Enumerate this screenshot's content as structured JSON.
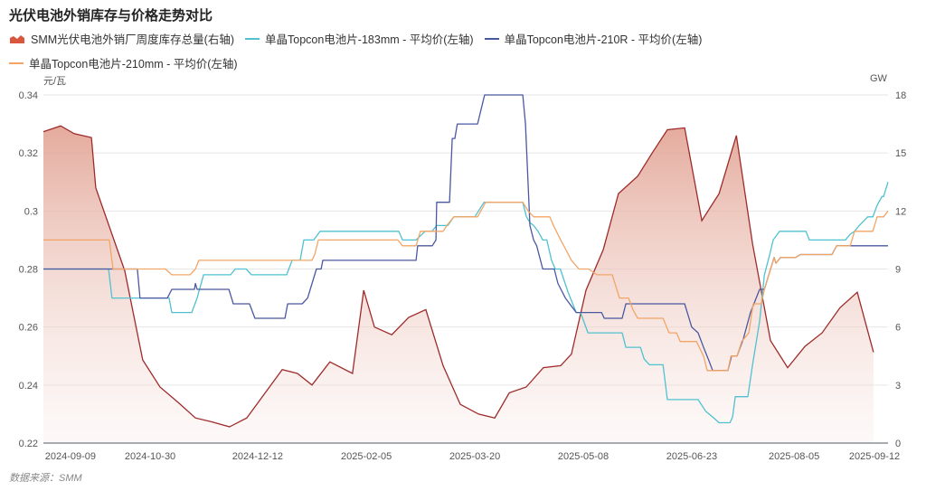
{
  "title": "光伏电池外销库存与价格走势对比",
  "source": "数据来源：SMM",
  "chart_data": {
    "type": "line",
    "title": "光伏电池外销库存与价格走势对比",
    "x_type": "category index (trading days)",
    "x_range": [
      0,
      250
    ],
    "x_tick_labels": [
      {
        "i": 8,
        "label": "2024-09-09"
      },
      {
        "i": 31.6,
        "label": "2024-10-30"
      },
      {
        "i": 63.4,
        "label": "2024-12-12"
      },
      {
        "i": 95.6,
        "label": "2025-02-05"
      },
      {
        "i": 127.7,
        "label": "2025-03-20"
      },
      {
        "i": 159.8,
        "label": "2025-05-08"
      },
      {
        "i": 191.9,
        "label": "2025-06-23"
      },
      {
        "i": 222.2,
        "label": "2025-08-05"
      },
      {
        "i": 246,
        "label": "2025-09-12"
      }
    ],
    "y_left": {
      "label": "元/瓦",
      "range": [
        0.22,
        0.34
      ],
      "ticks": [
        "0.22",
        "0.24",
        "0.26",
        "0.28",
        "0.3",
        "0.32",
        "0.34"
      ]
    },
    "y_right": {
      "label": "GW",
      "range": [
        0,
        18
      ],
      "ticks": [
        "0",
        "3",
        "6",
        "9",
        "12",
        "15",
        "18"
      ]
    },
    "grid": true,
    "legend_position": "top-left",
    "series": [
      {
        "name": "SMM光伏电池外销厂周度库存总量(右轴)",
        "type": "area",
        "axis": "right",
        "color": "#9e2b2b",
        "points": [
          [
            0,
            16.1
          ],
          [
            5.1,
            16.4
          ],
          [
            9.1,
            16.0
          ],
          [
            14.2,
            15.8
          ],
          [
            15.5,
            13.2
          ],
          [
            24.1,
            8.9
          ],
          [
            29.4,
            4.3
          ],
          [
            34.5,
            2.9
          ],
          [
            39.9,
            2.1
          ],
          [
            45,
            1.3
          ],
          [
            49.8,
            1.1
          ],
          [
            55.1,
            0.84
          ],
          [
            60.2,
            1.3
          ],
          [
            70.7,
            3.8
          ],
          [
            75.2,
            3.6
          ],
          [
            79.5,
            3.0
          ],
          [
            84.8,
            4.2
          ],
          [
            91.5,
            3.6
          ],
          [
            94.8,
            7.9
          ],
          [
            98,
            6.0
          ],
          [
            103.1,
            5.6
          ],
          [
            108.1,
            6.5
          ],
          [
            113.2,
            6.9
          ],
          [
            118.3,
            4.0
          ],
          [
            123.4,
            2.0
          ],
          [
            128.8,
            1.5
          ],
          [
            133.6,
            1.3
          ],
          [
            137.9,
            2.6
          ],
          [
            142.9,
            2.9
          ],
          [
            148,
            3.9
          ],
          [
            153.1,
            4.0
          ],
          [
            156.3,
            4.6
          ],
          [
            160.6,
            7.9
          ],
          [
            165.7,
            10.0
          ],
          [
            170.2,
            12.9
          ],
          [
            175.9,
            13.8
          ],
          [
            180.2,
            15.0
          ],
          [
            184.7,
            16.2
          ],
          [
            189.8,
            16.3
          ],
          [
            194.9,
            11.5
          ],
          [
            200,
            12.9
          ],
          [
            205.1,
            15.9
          ],
          [
            209.9,
            10.3
          ],
          [
            215.2,
            5.3
          ],
          [
            220.3,
            3.9
          ],
          [
            225.4,
            5.0
          ],
          [
            230.5,
            5.7
          ],
          [
            235.8,
            7.0
          ],
          [
            240.9,
            7.8
          ],
          [
            245.7,
            4.7
          ]
        ]
      },
      {
        "name": "单晶Topcon电池片-183mm - 平均价(左轴)",
        "type": "line",
        "axis": "left",
        "color": "#4fc1d0",
        "points": [
          [
            0,
            0.28
          ],
          [
            19.3,
            0.28
          ],
          [
            20.3,
            0.27
          ],
          [
            37.2,
            0.27
          ],
          [
            38,
            0.265
          ],
          [
            43.9,
            0.265
          ],
          [
            45.5,
            0.27
          ],
          [
            47.4,
            0.278
          ],
          [
            55.4,
            0.278
          ],
          [
            56.8,
            0.28
          ],
          [
            60,
            0.28
          ],
          [
            61.6,
            0.278
          ],
          [
            72,
            0.278
          ],
          [
            73.6,
            0.283
          ],
          [
            76,
            0.283
          ],
          [
            77.1,
            0.29
          ],
          [
            80,
            0.29
          ],
          [
            81.9,
            0.293
          ],
          [
            105.2,
            0.293
          ],
          [
            106.3,
            0.29
          ],
          [
            110.3,
            0.29
          ],
          [
            113,
            0.293
          ],
          [
            115,
            0.293
          ],
          [
            116.4,
            0.295
          ],
          [
            119.7,
            0.295
          ],
          [
            121.5,
            0.298
          ],
          [
            127.7,
            0.298
          ],
          [
            130.4,
            0.303
          ],
          [
            141.9,
            0.303
          ],
          [
            143,
            0.298
          ],
          [
            144,
            0.296
          ],
          [
            145.1,
            0.295
          ],
          [
            146.4,
            0.293
          ],
          [
            147.8,
            0.29
          ],
          [
            149,
            0.29
          ],
          [
            150.4,
            0.283
          ],
          [
            151.5,
            0.28
          ],
          [
            153,
            0.28
          ],
          [
            155.3,
            0.272
          ],
          [
            157.7,
            0.265
          ],
          [
            159,
            0.265
          ],
          [
            161.2,
            0.258
          ],
          [
            171.3,
            0.258
          ],
          [
            172.4,
            0.253
          ],
          [
            176.7,
            0.253
          ],
          [
            177.8,
            0.249
          ],
          [
            179.4,
            0.247
          ],
          [
            183.4,
            0.247
          ],
          [
            184.7,
            0.235
          ],
          [
            193.8,
            0.235
          ],
          [
            196,
            0.231
          ],
          [
            198.1,
            0.229
          ],
          [
            200,
            0.227
          ],
          [
            203.2,
            0.227
          ],
          [
            204,
            0.229
          ],
          [
            204.8,
            0.236
          ],
          [
            208.5,
            0.236
          ],
          [
            209.9,
            0.247
          ],
          [
            212,
            0.262
          ],
          [
            213.4,
            0.278
          ],
          [
            215,
            0.285
          ],
          [
            216,
            0.29
          ],
          [
            217.9,
            0.293
          ],
          [
            225.7,
            0.293
          ],
          [
            226.7,
            0.29
          ],
          [
            237.4,
            0.29
          ],
          [
            238.8,
            0.292
          ],
          [
            240.1,
            0.293
          ],
          [
            241.5,
            0.295
          ],
          [
            244,
            0.298
          ],
          [
            245.5,
            0.298
          ],
          [
            246.8,
            0.302
          ],
          [
            248.2,
            0.305
          ],
          [
            248.7,
            0.305
          ],
          [
            250,
            0.31
          ]
        ]
      },
      {
        "name": "单晶Topcon电池片-210R - 平均价(左轴)",
        "type": "line",
        "axis": "left",
        "color": "#4a58a0",
        "points": [
          [
            0,
            0.28
          ],
          [
            27.8,
            0.28
          ],
          [
            28.6,
            0.27
          ],
          [
            36.7,
            0.27
          ],
          [
            38,
            0.273
          ],
          [
            44.7,
            0.273
          ],
          [
            45,
            0.275
          ],
          [
            45.5,
            0.273
          ],
          [
            54.9,
            0.273
          ],
          [
            56.2,
            0.268
          ],
          [
            61,
            0.268
          ],
          [
            62.6,
            0.263
          ],
          [
            71.5,
            0.263
          ],
          [
            72.3,
            0.268
          ],
          [
            76.6,
            0.268
          ],
          [
            78.2,
            0.27
          ],
          [
            80.8,
            0.28
          ],
          [
            82.2,
            0.28
          ],
          [
            82.7,
            0.283
          ],
          [
            110.3,
            0.283
          ],
          [
            110.8,
            0.288
          ],
          [
            115.1,
            0.288
          ],
          [
            116.2,
            0.29
          ],
          [
            116.4,
            0.303
          ],
          [
            120.2,
            0.303
          ],
          [
            121,
            0.325
          ],
          [
            121.8,
            0.325
          ],
          [
            122.5,
            0.33
          ],
          [
            128.5,
            0.33
          ],
          [
            130.6,
            0.34
          ],
          [
            141.9,
            0.34
          ],
          [
            142.7,
            0.33
          ],
          [
            144,
            0.295
          ],
          [
            145.1,
            0.29
          ],
          [
            146,
            0.288
          ],
          [
            147.8,
            0.28
          ],
          [
            151.2,
            0.28
          ],
          [
            152.3,
            0.275
          ],
          [
            154.5,
            0.27
          ],
          [
            157.7,
            0.265
          ],
          [
            165.2,
            0.265
          ],
          [
            166,
            0.263
          ],
          [
            171.3,
            0.263
          ],
          [
            172.4,
            0.268
          ],
          [
            189.8,
            0.268
          ],
          [
            191.9,
            0.26
          ],
          [
            193.8,
            0.258
          ],
          [
            195.4,
            0.253
          ],
          [
            196.8,
            0.249
          ],
          [
            198.1,
            0.245
          ],
          [
            202.6,
            0.245
          ],
          [
            203.7,
            0.25
          ],
          [
            205.3,
            0.25
          ],
          [
            207.2,
            0.256
          ],
          [
            209.3,
            0.265
          ],
          [
            212,
            0.273
          ],
          [
            213.4,
            0.273
          ],
          [
            214.7,
            0.278
          ],
          [
            216.3,
            0.284
          ],
          [
            216.8,
            0.282
          ],
          [
            218.2,
            0.284
          ],
          [
            222.7,
            0.284
          ],
          [
            224,
            0.285
          ],
          [
            233.4,
            0.285
          ],
          [
            234.8,
            0.288
          ],
          [
            250,
            0.288
          ]
        ]
      },
      {
        "name": "单晶Topcon电池片-210mm - 平均价(左轴)",
        "type": "line",
        "axis": "left",
        "color": "#f2a566",
        "points": [
          [
            0,
            0.29
          ],
          [
            19.5,
            0.29
          ],
          [
            20.6,
            0.28
          ],
          [
            36.1,
            0.28
          ],
          [
            38,
            0.278
          ],
          [
            43.4,
            0.278
          ],
          [
            45,
            0.28
          ],
          [
            46,
            0.283
          ],
          [
            79.5,
            0.283
          ],
          [
            80.3,
            0.285
          ],
          [
            81.4,
            0.29
          ],
          [
            104.9,
            0.29
          ],
          [
            106.3,
            0.288
          ],
          [
            110.3,
            0.288
          ],
          [
            111.6,
            0.293
          ],
          [
            118.3,
            0.293
          ],
          [
            119.4,
            0.295
          ],
          [
            121.5,
            0.298
          ],
          [
            128.5,
            0.298
          ],
          [
            130.9,
            0.303
          ],
          [
            141.9,
            0.303
          ],
          [
            143.5,
            0.3
          ],
          [
            145.1,
            0.298
          ],
          [
            149.9,
            0.298
          ],
          [
            151,
            0.295
          ],
          [
            153.1,
            0.29
          ],
          [
            154.5,
            0.287
          ],
          [
            156.3,
            0.283
          ],
          [
            158.5,
            0.28
          ],
          [
            161.4,
            0.28
          ],
          [
            163.8,
            0.278
          ],
          [
            168.4,
            0.278
          ],
          [
            170.5,
            0.27
          ],
          [
            173.2,
            0.27
          ],
          [
            174.5,
            0.266
          ],
          [
            175.9,
            0.263
          ],
          [
            183.4,
            0.263
          ],
          [
            185.2,
            0.258
          ],
          [
            187.4,
            0.258
          ],
          [
            188.5,
            0.255
          ],
          [
            193.3,
            0.255
          ],
          [
            195.4,
            0.25
          ],
          [
            196.5,
            0.245
          ],
          [
            202.6,
            0.245
          ],
          [
            203.5,
            0.25
          ],
          [
            205.3,
            0.25
          ],
          [
            206.7,
            0.255
          ],
          [
            208.8,
            0.258
          ],
          [
            210.1,
            0.268
          ],
          [
            212.5,
            0.268
          ],
          [
            213.4,
            0.273
          ],
          [
            214.7,
            0.278
          ],
          [
            216.3,
            0.284
          ],
          [
            216.8,
            0.282
          ],
          [
            218.2,
            0.284
          ],
          [
            222.7,
            0.284
          ],
          [
            224,
            0.285
          ],
          [
            233.4,
            0.285
          ],
          [
            234.8,
            0.288
          ],
          [
            238.8,
            0.288
          ],
          [
            240.1,
            0.293
          ],
          [
            245.5,
            0.293
          ],
          [
            246.8,
            0.298
          ],
          [
            248.7,
            0.298
          ],
          [
            250,
            0.3
          ]
        ]
      }
    ]
  }
}
